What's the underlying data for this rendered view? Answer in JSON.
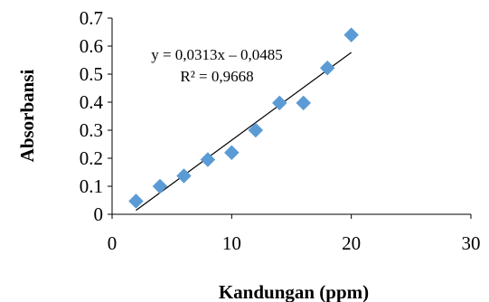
{
  "chart_data": {
    "type": "scatter",
    "title": "",
    "xlabel": "Kandungan (ppm)",
    "ylabel": "Absorbansi",
    "xlim": [
      0,
      30
    ],
    "ylim": [
      0,
      0.7
    ],
    "xticks": [
      0,
      10,
      20,
      30
    ],
    "yticks": [
      0,
      0.1,
      0.2,
      0.3,
      0.4,
      0.5,
      0.6,
      0.7
    ],
    "ytick_labels": [
      "0",
      "0.1",
      "0.2",
      "0.3",
      "0.4",
      "0.5",
      "0.6",
      "0.7"
    ],
    "xtick_labels": [
      "0",
      "10",
      "20",
      "30"
    ],
    "grid": false,
    "marker_color": "#5b9bd5",
    "series": [
      {
        "x": [
          2,
          4,
          6,
          8,
          10,
          12,
          14,
          16,
          18,
          20
        ],
        "y": [
          0.047,
          0.1,
          0.137,
          0.195,
          0.22,
          0.3,
          0.397,
          0.397,
          0.522,
          0.64
        ]
      }
    ],
    "trendline": {
      "slope": 0.0313,
      "intercept": -0.0485,
      "x_range": [
        2,
        20
      ],
      "equation_label": "y = 0,0313x – 0,0485",
      "r2_label": "R² = 0,9668"
    }
  }
}
